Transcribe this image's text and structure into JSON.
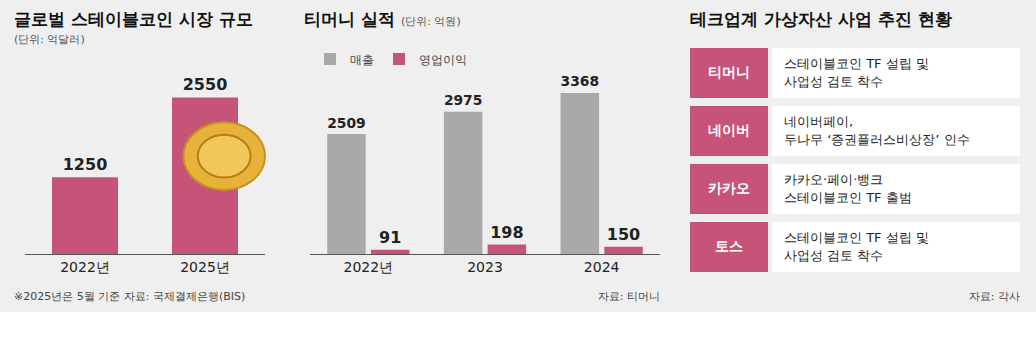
{
  "chart_data": [
    {
      "type": "bar",
      "title": "글로벌 스테이블코인 시장 규모",
      "subtitle": "(단위: 억달러)",
      "categories": [
        "2022년",
        "2025년"
      ],
      "values": [
        1250,
        2550
      ],
      "color": "#c65479",
      "ylim": [
        0,
        2900
      ],
      "yticks": [],
      "tick_labels": "x",
      "data_labels": true,
      "note": "※2025년은 5월 기준",
      "source": "자료: 국제결제은행(BIS)"
    },
    {
      "type": "bar",
      "title": "티머니 실적",
      "subtitle": "(단위: 억원)",
      "categories": [
        "2022년",
        "2023",
        "2024"
      ],
      "series": [
        {
          "name": "매출",
          "color": "#a9a9a9",
          "values": [
            2509,
            2975,
            3368
          ]
        },
        {
          "name": "영업이익",
          "color": "#c65479",
          "values": [
            91,
            198,
            150
          ]
        }
      ],
      "ylim": [
        0,
        3700
      ],
      "yticks": [],
      "tick_labels": "x",
      "data_labels": true,
      "legend": "top-left",
      "source": "자료: 티머니"
    }
  ],
  "panel": {
    "title": "테크업계 가상자산 사업 추진 현황",
    "rows": [
      {
        "company": "티머니",
        "lines": [
          "스테이블코인 TF 설립 및",
          "사업성 검토 착수"
        ]
      },
      {
        "company": "네이버",
        "lines": [
          "네이버페이,",
          "두나무 ‘증권플러스비상장’ 인수"
        ]
      },
      {
        "company": "카카오",
        "lines": [
          "카카오·페이·뱅크",
          "스테이블코인 TF 출범"
        ]
      },
      {
        "company": "토스",
        "lines": [
          "스테이블코인 TF 설립 및",
          "사업성 검토 착수"
        ]
      }
    ],
    "source": "자료: 각사"
  }
}
